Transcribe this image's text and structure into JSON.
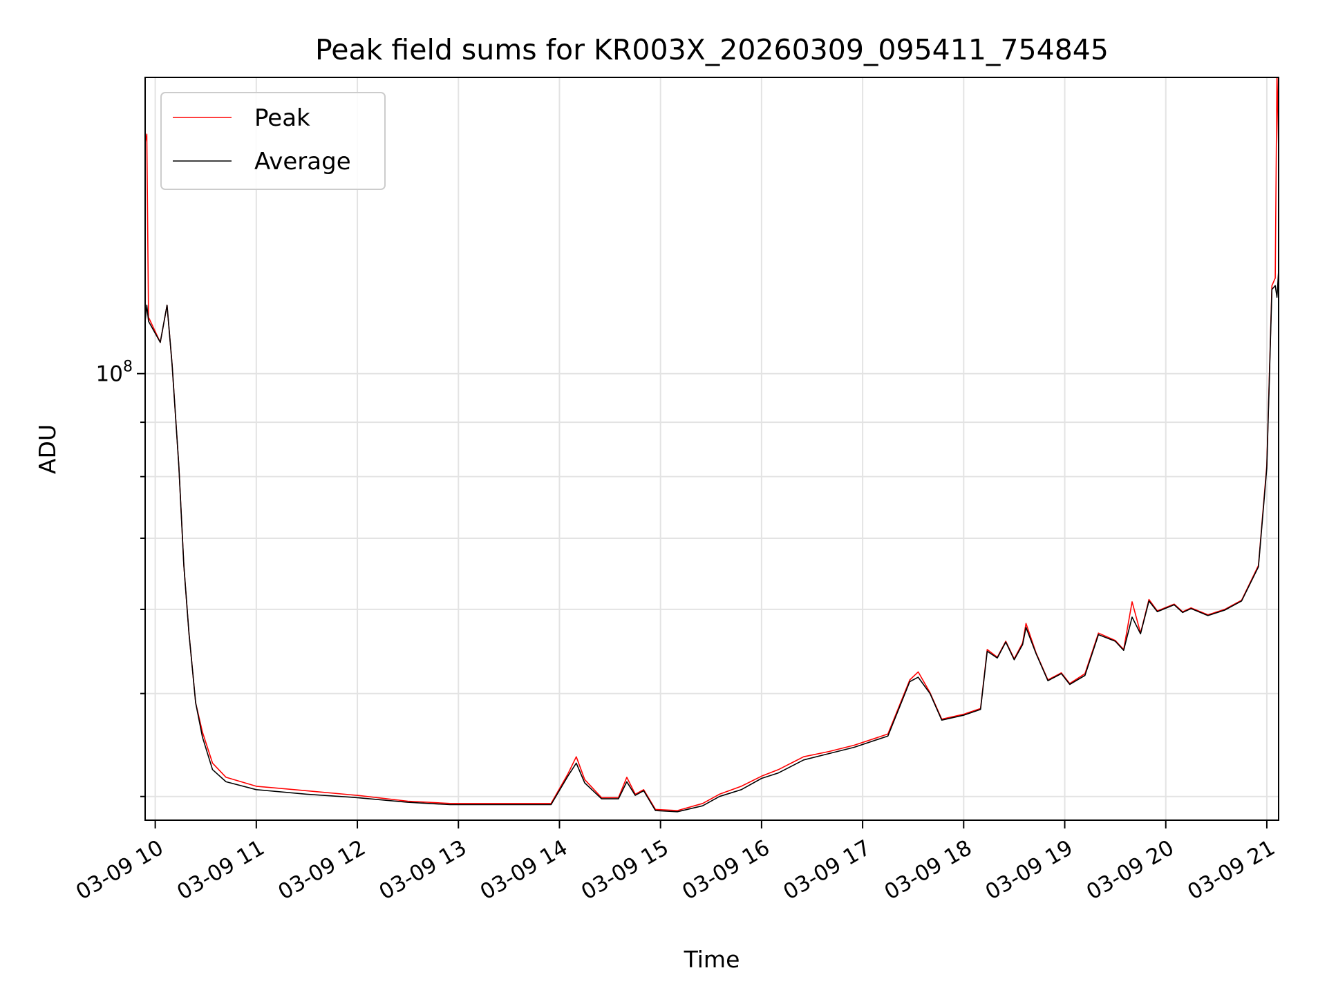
{
  "chart_data": {
    "type": "line",
    "title": "Peak field sums for KR003X_20260309_095411_754845",
    "xlabel": "Time",
    "ylabel": "ADU",
    "y_scale": "log",
    "ylim": [
      38000000,
      190000000
    ],
    "xlim": [
      "2026-03-09T09:54",
      "2026-03-09T21:07"
    ],
    "x_ticks": [
      {
        "t": "2026-03-09T10:00",
        "label": "03-09 10"
      },
      {
        "t": "2026-03-09T11:00",
        "label": "03-09 11"
      },
      {
        "t": "2026-03-09T12:00",
        "label": "03-09 12"
      },
      {
        "t": "2026-03-09T13:00",
        "label": "03-09 13"
      },
      {
        "t": "2026-03-09T14:00",
        "label": "03-09 14"
      },
      {
        "t": "2026-03-09T15:00",
        "label": "03-09 15"
      },
      {
        "t": "2026-03-09T16:00",
        "label": "03-09 16"
      },
      {
        "t": "2026-03-09T17:00",
        "label": "03-09 17"
      },
      {
        "t": "2026-03-09T18:00",
        "label": "03-09 18"
      },
      {
        "t": "2026-03-09T19:00",
        "label": "03-09 19"
      },
      {
        "t": "2026-03-09T20:00",
        "label": "03-09 20"
      },
      {
        "t": "2026-03-09T21:00",
        "label": "03-09 21"
      }
    ],
    "y_major_ticks": [
      {
        "value": 100000000,
        "base": "10",
        "exp": "8"
      }
    ],
    "y_minor_ticks": [
      40000000,
      50000000,
      60000000,
      70000000,
      80000000,
      90000000,
      200000000
    ],
    "grid": true,
    "legend_position": "upper-left",
    "series": [
      {
        "name": "Peak",
        "color": "#ff0000",
        "points": [
          [
            "2026-03-09T09:54",
            112000000
          ],
          [
            "2026-03-09T09:54",
            165000000
          ],
          [
            "2026-03-09T09:55",
            168000000
          ],
          [
            "2026-03-09T09:56",
            113000000
          ],
          [
            "2026-03-09T10:03",
            107000000
          ],
          [
            "2026-03-09T10:07",
            116000000
          ],
          [
            "2026-03-09T10:10",
            102000000
          ],
          [
            "2026-03-09T10:14",
            82000000
          ],
          [
            "2026-03-09T10:17",
            66000000
          ],
          [
            "2026-03-09T10:20",
            57000000
          ],
          [
            "2026-03-09T10:24",
            49000000
          ],
          [
            "2026-03-09T10:28",
            46000000
          ],
          [
            "2026-03-09T10:34",
            43000000
          ],
          [
            "2026-03-09T10:42",
            41700000
          ],
          [
            "2026-03-09T11:00",
            40900000
          ],
          [
            "2026-03-09T11:30",
            40500000
          ],
          [
            "2026-03-09T12:00",
            40100000
          ],
          [
            "2026-03-09T12:30",
            39600000
          ],
          [
            "2026-03-09T12:55",
            39400000
          ],
          [
            "2026-03-09T13:30",
            39400000
          ],
          [
            "2026-03-09T13:55",
            39400000
          ],
          [
            "2026-03-09T14:05",
            42000000
          ],
          [
            "2026-03-09T14:10",
            43600000
          ],
          [
            "2026-03-09T14:15",
            41500000
          ],
          [
            "2026-03-09T14:25",
            39900000
          ],
          [
            "2026-03-09T14:35",
            39900000
          ],
          [
            "2026-03-09T14:40",
            41700000
          ],
          [
            "2026-03-09T14:45",
            40200000
          ],
          [
            "2026-03-09T14:50",
            40600000
          ],
          [
            "2026-03-09T14:57",
            38900000
          ],
          [
            "2026-03-09T15:10",
            38800000
          ],
          [
            "2026-03-09T15:25",
            39400000
          ],
          [
            "2026-03-09T15:35",
            40200000
          ],
          [
            "2026-03-09T15:48",
            40900000
          ],
          [
            "2026-03-09T16:00",
            41800000
          ],
          [
            "2026-03-09T16:10",
            42400000
          ],
          [
            "2026-03-09T16:25",
            43600000
          ],
          [
            "2026-03-09T16:40",
            44100000
          ],
          [
            "2026-03-09T16:55",
            44700000
          ],
          [
            "2026-03-09T17:15",
            45800000
          ],
          [
            "2026-03-09T17:28",
            51500000
          ],
          [
            "2026-03-09T17:33",
            52400000
          ],
          [
            "2026-03-09T17:40",
            50100000
          ],
          [
            "2026-03-09T17:47",
            47300000
          ],
          [
            "2026-03-09T18:00",
            47800000
          ],
          [
            "2026-03-09T18:10",
            48400000
          ],
          [
            "2026-03-09T18:14",
            55000000
          ],
          [
            "2026-03-09T18:20",
            54100000
          ],
          [
            "2026-03-09T18:25",
            56000000
          ],
          [
            "2026-03-09T18:30",
            53900000
          ],
          [
            "2026-03-09T18:35",
            55800000
          ],
          [
            "2026-03-09T18:37",
            58200000
          ],
          [
            "2026-03-09T18:43",
            54600000
          ],
          [
            "2026-03-09T18:50",
            51500000
          ],
          [
            "2026-03-09T18:58",
            52300000
          ],
          [
            "2026-03-09T19:03",
            51100000
          ],
          [
            "2026-03-09T19:12",
            52200000
          ],
          [
            "2026-03-09T19:20",
            57000000
          ],
          [
            "2026-03-09T19:30",
            56100000
          ],
          [
            "2026-03-09T19:35",
            55000000
          ],
          [
            "2026-03-09T19:40",
            61000000
          ],
          [
            "2026-03-09T19:45",
            57000000
          ],
          [
            "2026-03-09T19:50",
            61300000
          ],
          [
            "2026-03-09T19:55",
            59800000
          ],
          [
            "2026-03-09T20:05",
            60700000
          ],
          [
            "2026-03-09T20:10",
            59700000
          ],
          [
            "2026-03-09T20:15",
            60200000
          ],
          [
            "2026-03-09T20:25",
            59300000
          ],
          [
            "2026-03-09T20:35",
            60000000
          ],
          [
            "2026-03-09T20:45",
            61200000
          ],
          [
            "2026-03-09T20:55",
            66000000
          ],
          [
            "2026-03-09T21:00",
            82000000
          ],
          [
            "2026-03-09T21:03",
            121000000
          ],
          [
            "2026-03-09T21:05",
            123000000
          ],
          [
            "2026-03-09T21:06",
            192000000
          ],
          [
            "2026-03-09T21:07",
            162000000
          ]
        ]
      },
      {
        "name": "Average",
        "color": "#000000",
        "points": [
          [
            "2026-03-09T09:54",
            112000000
          ],
          [
            "2026-03-09T09:55",
            116000000
          ],
          [
            "2026-03-09T09:56",
            112000000
          ],
          [
            "2026-03-09T10:03",
            107000000
          ],
          [
            "2026-03-09T10:07",
            116000000
          ],
          [
            "2026-03-09T10:10",
            102000000
          ],
          [
            "2026-03-09T10:14",
            82000000
          ],
          [
            "2026-03-09T10:17",
            66000000
          ],
          [
            "2026-03-09T10:20",
            57000000
          ],
          [
            "2026-03-09T10:24",
            49000000
          ],
          [
            "2026-03-09T10:28",
            45500000
          ],
          [
            "2026-03-09T10:34",
            42400000
          ],
          [
            "2026-03-09T10:42",
            41300000
          ],
          [
            "2026-03-09T11:00",
            40600000
          ],
          [
            "2026-03-09T11:30",
            40200000
          ],
          [
            "2026-03-09T12:00",
            39900000
          ],
          [
            "2026-03-09T12:30",
            39500000
          ],
          [
            "2026-03-09T12:55",
            39300000
          ],
          [
            "2026-03-09T13:30",
            39300000
          ],
          [
            "2026-03-09T13:55",
            39300000
          ],
          [
            "2026-03-09T14:05",
            41800000
          ],
          [
            "2026-03-09T14:10",
            43000000
          ],
          [
            "2026-03-09T14:15",
            41200000
          ],
          [
            "2026-03-09T14:25",
            39800000
          ],
          [
            "2026-03-09T14:35",
            39800000
          ],
          [
            "2026-03-09T14:40",
            41300000
          ],
          [
            "2026-03-09T14:45",
            40100000
          ],
          [
            "2026-03-09T14:50",
            40500000
          ],
          [
            "2026-03-09T14:57",
            38800000
          ],
          [
            "2026-03-09T15:10",
            38700000
          ],
          [
            "2026-03-09T15:25",
            39200000
          ],
          [
            "2026-03-09T15:35",
            40000000
          ],
          [
            "2026-03-09T15:48",
            40600000
          ],
          [
            "2026-03-09T16:00",
            41600000
          ],
          [
            "2026-03-09T16:10",
            42100000
          ],
          [
            "2026-03-09T16:25",
            43300000
          ],
          [
            "2026-03-09T16:40",
            43900000
          ],
          [
            "2026-03-09T16:55",
            44500000
          ],
          [
            "2026-03-09T17:15",
            45600000
          ],
          [
            "2026-03-09T17:28",
            51300000
          ],
          [
            "2026-03-09T17:33",
            51800000
          ],
          [
            "2026-03-09T17:40",
            50000000
          ],
          [
            "2026-03-09T17:47",
            47200000
          ],
          [
            "2026-03-09T18:00",
            47700000
          ],
          [
            "2026-03-09T18:10",
            48300000
          ],
          [
            "2026-03-09T18:14",
            54800000
          ],
          [
            "2026-03-09T18:20",
            54000000
          ],
          [
            "2026-03-09T18:25",
            55900000
          ],
          [
            "2026-03-09T18:30",
            53800000
          ],
          [
            "2026-03-09T18:35",
            55600000
          ],
          [
            "2026-03-09T18:37",
            57700000
          ],
          [
            "2026-03-09T18:43",
            54500000
          ],
          [
            "2026-03-09T18:50",
            51400000
          ],
          [
            "2026-03-09T18:58",
            52200000
          ],
          [
            "2026-03-09T19:03",
            51000000
          ],
          [
            "2026-03-09T19:12",
            52000000
          ],
          [
            "2026-03-09T19:20",
            56800000
          ],
          [
            "2026-03-09T19:30",
            56000000
          ],
          [
            "2026-03-09T19:35",
            54900000
          ],
          [
            "2026-03-09T19:40",
            59000000
          ],
          [
            "2026-03-09T19:45",
            56900000
          ],
          [
            "2026-03-09T19:50",
            61100000
          ],
          [
            "2026-03-09T19:55",
            59700000
          ],
          [
            "2026-03-09T20:05",
            60600000
          ],
          [
            "2026-03-09T20:10",
            59600000
          ],
          [
            "2026-03-09T20:15",
            60100000
          ],
          [
            "2026-03-09T20:25",
            59200000
          ],
          [
            "2026-03-09T20:35",
            59900000
          ],
          [
            "2026-03-09T20:45",
            61100000
          ],
          [
            "2026-03-09T20:55",
            65800000
          ],
          [
            "2026-03-09T21:00",
            81500000
          ],
          [
            "2026-03-09T21:03",
            120000000
          ],
          [
            "2026-03-09T21:05",
            121000000
          ],
          [
            "2026-03-09T21:06",
            118000000
          ],
          [
            "2026-03-09T21:07",
            125000000
          ]
        ]
      }
    ]
  }
}
